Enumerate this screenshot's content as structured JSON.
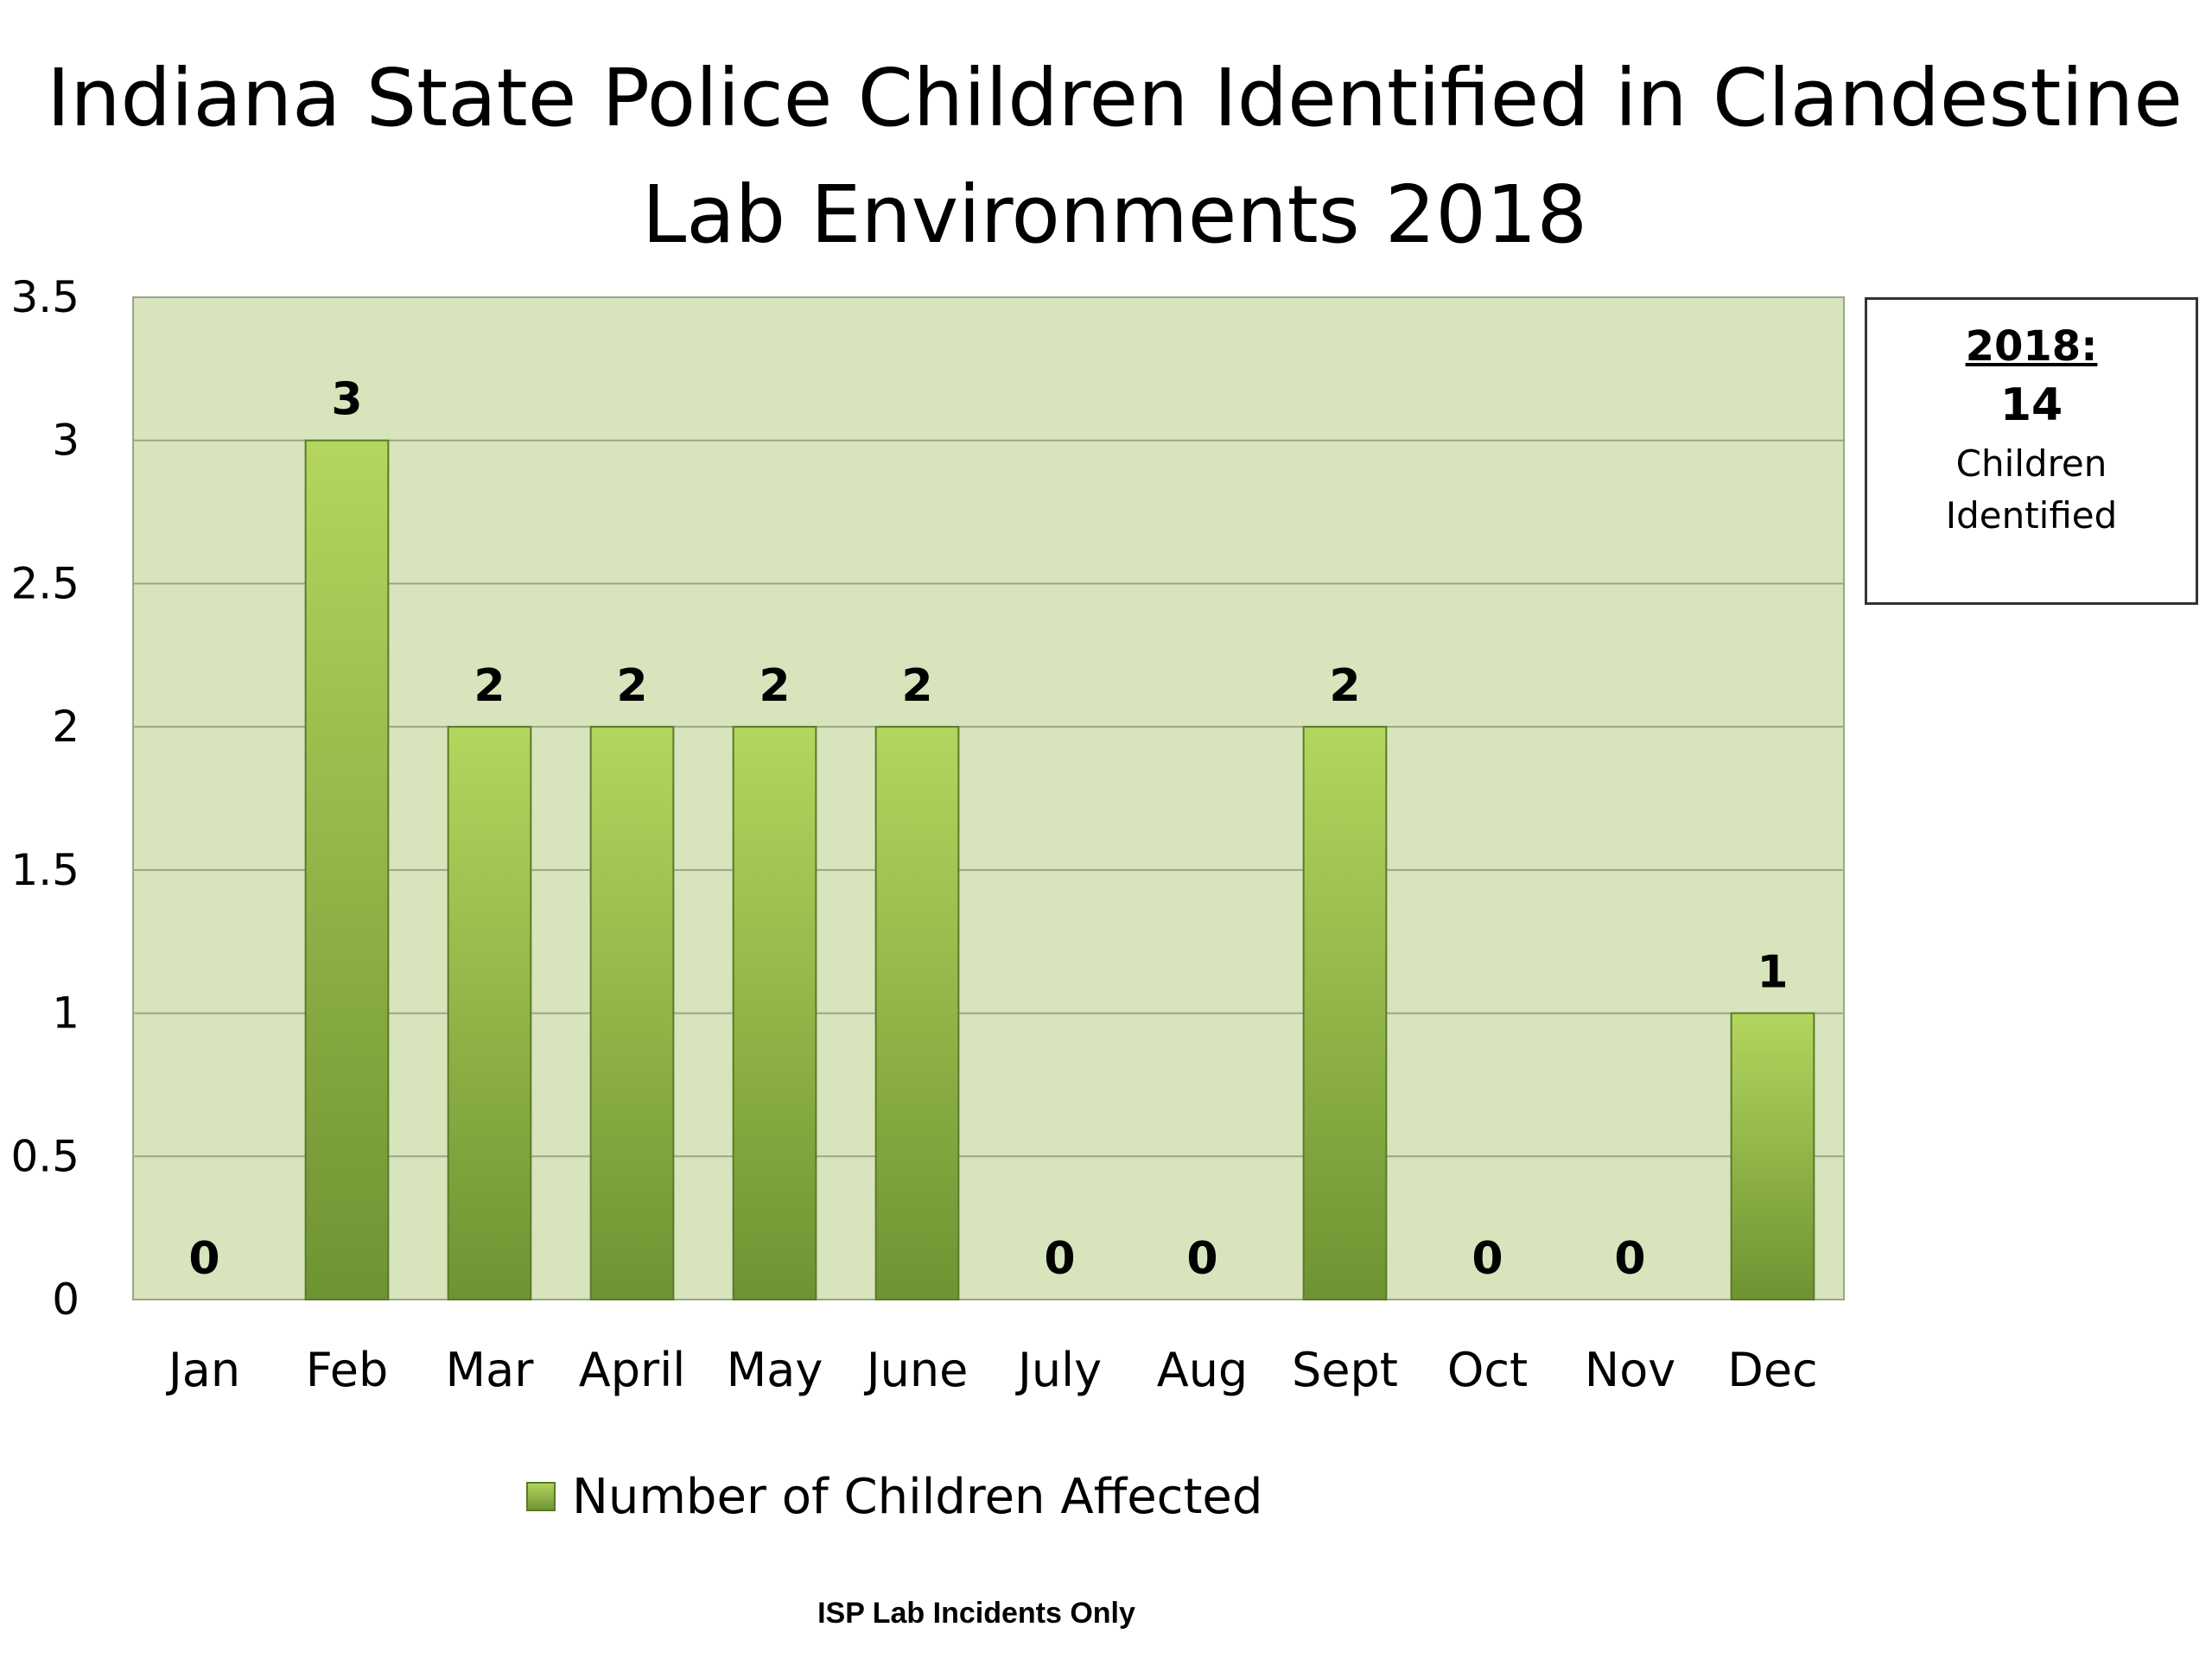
{
  "chart_data": {
    "type": "bar",
    "title_lines": [
      "Indiana State Police Children Identified in Clandestine",
      "Lab Environments 2018"
    ],
    "categories": [
      "Jan",
      "Feb",
      "Mar",
      "April",
      "May",
      "June",
      "July",
      "Aug",
      "Sept",
      "Oct",
      "Nov",
      "Dec"
    ],
    "series": [
      {
        "name": "Number of Children Affected",
        "values": [
          0,
          3,
          2,
          2,
          2,
          2,
          0,
          0,
          2,
          0,
          0,
          1
        ]
      }
    ],
    "data_labels": [
      "0",
      "3",
      "2",
      "2",
      "2",
      "2",
      "0",
      "0",
      "2",
      "0",
      "0",
      "1"
    ],
    "y_ticks": [
      "0",
      "0.5",
      "1",
      "1.5",
      "2",
      "2.5",
      "3",
      "3.5"
    ],
    "ylim": [
      0,
      3.5
    ],
    "grid": true,
    "legend_position": "bottom",
    "colors": {
      "plot_background": "#d8e4bc",
      "bar_light": "#b3d65e",
      "bar_dark": "#6e9332",
      "gridline": "#9aa58a"
    }
  },
  "summary_box": {
    "year": "2018:",
    "count": "14",
    "line1": "Children",
    "line2": "Identified"
  },
  "footnote": "ISP Lab Incidents Only"
}
